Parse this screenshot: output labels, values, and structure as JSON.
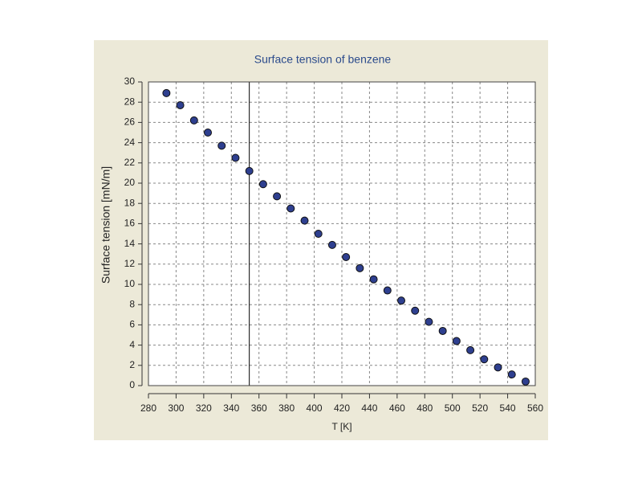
{
  "chart_data": {
    "type": "scatter",
    "title": "Surface tension of benzene",
    "x_label": "T [K]",
    "y_label": "Surface tension  [mN/m]",
    "series": [
      {
        "name": "Surface tension",
        "color": "#2e3f8f",
        "x": [
          293,
          303,
          313,
          323,
          333,
          343,
          353,
          363,
          373,
          383,
          393,
          403,
          413,
          423,
          433,
          443,
          453,
          463,
          473,
          483,
          493,
          503,
          513,
          523,
          533,
          543,
          553
        ],
        "values": [
          28.9,
          27.7,
          26.2,
          25.0,
          23.7,
          22.5,
          21.2,
          19.9,
          18.7,
          17.5,
          16.3,
          15.0,
          13.9,
          12.7,
          11.6,
          10.5,
          9.4,
          8.4,
          7.4,
          6.3,
          5.4,
          4.4,
          3.5,
          2.6,
          1.8,
          1.1,
          0.4
        ]
      }
    ],
    "vertical_line_x": 353,
    "xlim": [
      280,
      560
    ],
    "xticks": [
      280,
      300,
      320,
      340,
      360,
      380,
      400,
      420,
      440,
      460,
      480,
      500,
      520,
      540,
      560
    ],
    "ylim": [
      0,
      30
    ],
    "yticks": [
      0,
      2,
      4,
      6,
      8,
      10,
      12,
      14,
      16,
      18,
      20,
      22,
      24,
      26,
      28,
      30
    ],
    "grid": true
  }
}
